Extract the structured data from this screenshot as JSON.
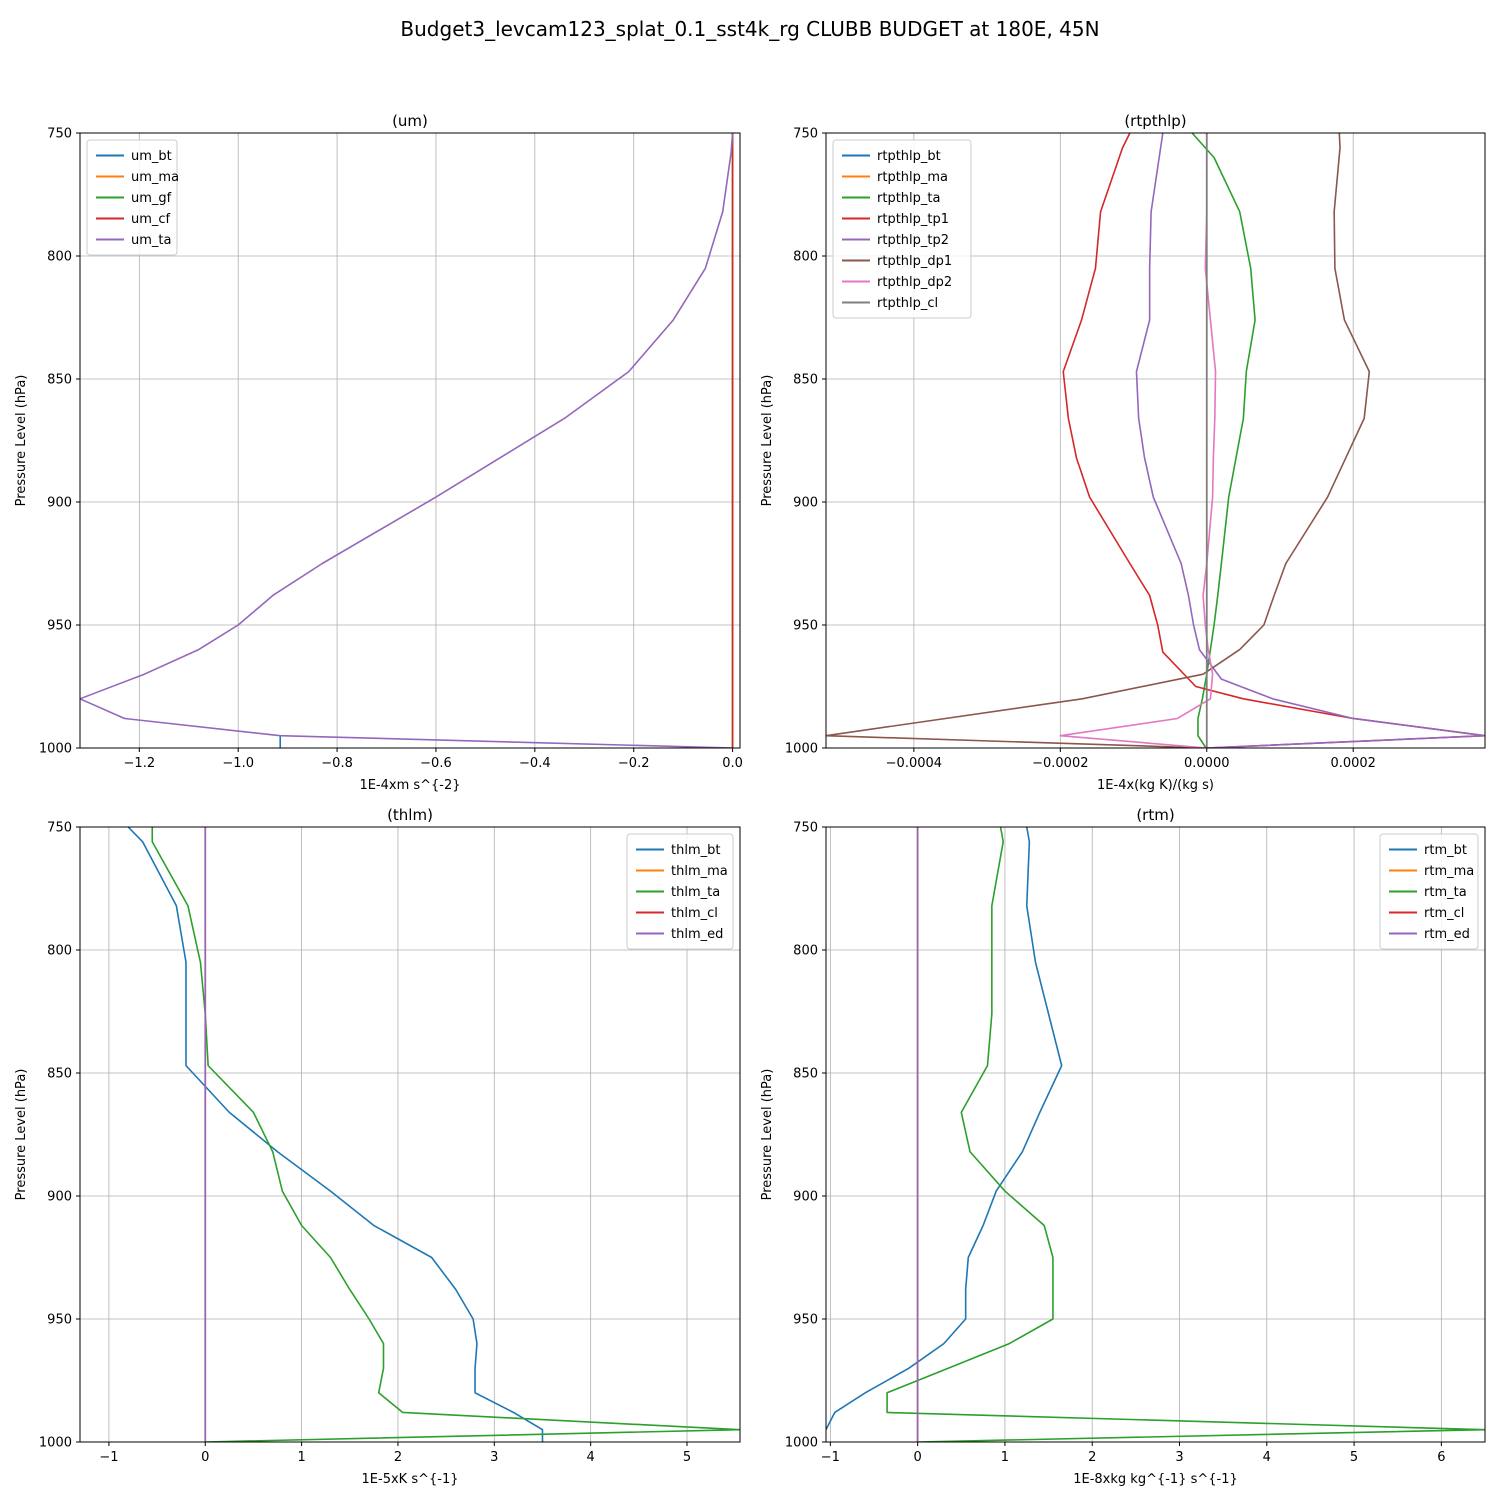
{
  "suptitle": "Budget3_levcam123_splat_0.1_sst4k_rg CLUBB BUDGET at 180E, 45N",
  "colors": [
    "#1f77b4",
    "#ff7f0e",
    "#2ca02c",
    "#d62728",
    "#9467bd",
    "#8c564b",
    "#e377c2",
    "#7f7f7f"
  ],
  "chart_data": [
    {
      "type": "line",
      "title": "(um)",
      "xlabel": "1E-4xm s^{-2}",
      "ylabel": "Pressure Level (hPa)",
      "xlim": [
        -1.32,
        0.015
      ],
      "ylim": [
        1000,
        750
      ],
      "xticks": [
        -1.2,
        -1.0,
        -0.8,
        -0.6,
        -0.4,
        -0.2,
        0.0
      ],
      "xtick_labels": [
        "−1.2",
        "−1.0",
        "−0.8",
        "−0.6",
        "−0.4",
        "−0.2",
        "0.0"
      ],
      "yticks": [
        750,
        800,
        850,
        900,
        950,
        1000
      ],
      "grid": true,
      "legend_loc": "upper-left",
      "series": [
        {
          "name": "um_bt",
          "points": [
            [
              -0.915,
              1000
            ],
            [
              -0.915,
              995
            ]
          ]
        },
        {
          "name": "um_ma",
          "points": [
            [
              0,
              1000
            ],
            [
              0,
              750
            ]
          ]
        },
        {
          "name": "um_gf",
          "points": [
            [
              0,
              1000
            ],
            [
              0,
              750
            ]
          ]
        },
        {
          "name": "um_cf",
          "points": [
            [
              0,
              1000
            ],
            [
              0,
              750
            ]
          ]
        },
        {
          "name": "um_ta",
          "points": [
            [
              0,
              1000
            ],
            [
              -0.915,
              995
            ],
            [
              -1.23,
              988
            ],
            [
              -1.32,
              980
            ],
            [
              -1.19,
              970
            ],
            [
              -1.08,
              960
            ],
            [
              -1.0,
              950
            ],
            [
              -0.93,
              938
            ],
            [
              -0.83,
              925
            ],
            [
              -0.6,
              898
            ],
            [
              -0.47,
              882
            ],
            [
              -0.34,
              866
            ],
            [
              -0.21,
              847
            ],
            [
              -0.12,
              826
            ],
            [
              -0.055,
              805
            ],
            [
              -0.02,
              782
            ],
            [
              -0.003,
              758
            ],
            [
              0,
              750
            ]
          ]
        }
      ]
    },
    {
      "type": "line",
      "title": "(rtpthlp)",
      "xlabel": "1E-4x(kg K)/(kg s)",
      "ylabel": "Pressure Level (hPa)",
      "xlim": [
        -0.00052,
        0.00038
      ],
      "ylim": [
        1000,
        750
      ],
      "xticks": [
        -0.0004,
        -0.0002,
        0.0,
        0.0002
      ],
      "xtick_labels": [
        "−0.0004",
        "−0.0002",
        "0.0000",
        "0.0002"
      ],
      "yticks": [
        750,
        800,
        850,
        900,
        950,
        1000
      ],
      "grid": true,
      "legend_loc": "upper-left",
      "series": [
        {
          "name": "rtpthlp_bt",
          "points": [
            [
              0,
              1000
            ],
            [
              0,
              750
            ]
          ]
        },
        {
          "name": "rtpthlp_ma",
          "points": [
            [
              0,
              1000
            ],
            [
              0,
              750
            ]
          ]
        },
        {
          "name": "rtpthlp_ta",
          "points": [
            [
              -1e-06,
              1000
            ],
            [
              -1.2e-05,
              995
            ],
            [
              -1.2e-05,
              988
            ],
            [
              -6e-06,
              980
            ],
            [
              0.0,
              970
            ],
            [
              5e-06,
              960
            ],
            [
              1e-05,
              950
            ],
            [
              1.5e-05,
              938
            ],
            [
              2e-05,
              925
            ],
            [
              3e-05,
              898
            ],
            [
              4e-05,
              882
            ],
            [
              5e-05,
              866
            ],
            [
              5.4e-05,
              847
            ],
            [
              6.6e-05,
              826
            ],
            [
              6e-05,
              805
            ],
            [
              4.5e-05,
              782
            ],
            [
              1e-05,
              760
            ],
            [
              -2e-05,
              750
            ]
          ]
        },
        {
          "name": "rtpthlp_tp1",
          "points": [
            [
              0,
              1000
            ],
            [
              0.00038,
              995
            ],
            [
              0.0002,
              988
            ],
            [
              5e-05,
              980
            ],
            [
              -1.5e-05,
              975
            ],
            [
              -6e-05,
              961
            ],
            [
              -6.7e-05,
              950
            ],
            [
              -7.8e-05,
              938
            ],
            [
              -0.000105,
              925
            ],
            [
              -0.00016,
              898
            ],
            [
              -0.000178,
              882
            ],
            [
              -0.000189,
              866
            ],
            [
              -0.000196,
              847
            ],
            [
              -0.000171,
              826
            ],
            [
              -0.000152,
              805
            ],
            [
              -0.000145,
              782
            ],
            [
              -0.000115,
              756
            ],
            [
              -0.000105,
              750
            ]
          ]
        },
        {
          "name": "rtpthlp_tp2",
          "points": [
            [
              0,
              1000
            ],
            [
              0.00038,
              995
            ],
            [
              0.0002,
              988
            ],
            [
              9e-05,
              980
            ],
            [
              2e-05,
              972
            ],
            [
              -1e-05,
              960
            ],
            [
              -1.8e-05,
              950
            ],
            [
              -2.5e-05,
              938
            ],
            [
              -3.5e-05,
              925
            ],
            [
              -7.3e-05,
              898
            ],
            [
              -8.5e-05,
              882
            ],
            [
              -9.3e-05,
              866
            ],
            [
              -9.6e-05,
              847
            ],
            [
              -7.8e-05,
              826
            ],
            [
              -7.8e-05,
              805
            ],
            [
              -7.6e-05,
              782
            ],
            [
              -6.3e-05,
              756
            ],
            [
              -6e-05,
              750
            ]
          ]
        },
        {
          "name": "rtpthlp_dp1",
          "points": [
            [
              0,
              1000
            ],
            [
              -0.00052,
              995
            ],
            [
              -0.00017,
              980
            ],
            [
              -5e-06,
              970
            ],
            [
              4.5e-05,
              960
            ],
            [
              7.8e-05,
              950
            ],
            [
              9.2e-05,
              938
            ],
            [
              0.000108,
              925
            ],
            [
              0.000165,
              898
            ],
            [
              0.00019,
              882
            ],
            [
              0.000215,
              866
            ],
            [
              0.000222,
              847
            ],
            [
              0.000188,
              826
            ],
            [
              0.000175,
              805
            ],
            [
              0.000174,
              782
            ],
            [
              0.000182,
              756
            ],
            [
              0.000181,
              750
            ]
          ]
        },
        {
          "name": "rtpthlp_dp2",
          "points": [
            [
              0,
              1000
            ],
            [
              -0.0002,
              995
            ],
            [
              -4e-05,
              988
            ],
            [
              5e-06,
              980
            ],
            [
              8e-06,
              970
            ],
            [
              2e-06,
              960
            ],
            [
              -2e-06,
              950
            ],
            [
              -5e-06,
              938
            ],
            [
              0.0,
              925
            ],
            [
              8e-06,
              898
            ],
            [
              9e-06,
              882
            ],
            [
              1.1e-05,
              866
            ],
            [
              1.2e-05,
              847
            ],
            [
              5e-06,
              826
            ],
            [
              -2e-06,
              805
            ],
            [
              0.0,
              782
            ],
            [
              0.0,
              750
            ]
          ]
        },
        {
          "name": "rtpthlp_cl",
          "points": [
            [
              0,
              1000
            ],
            [
              0,
              750
            ]
          ]
        }
      ]
    },
    {
      "type": "line",
      "title": "(thlm)",
      "xlabel": "1E-5xK s^{-1}",
      "ylabel": "Pressure Level (hPa)",
      "xlim": [
        -1.3,
        5.55
      ],
      "ylim": [
        1000,
        750
      ],
      "xticks": [
        -1,
        0,
        1,
        2,
        3,
        4,
        5
      ],
      "xtick_labels": [
        "−1",
        "0",
        "1",
        "2",
        "3",
        "4",
        "5"
      ],
      "yticks": [
        750,
        800,
        850,
        900,
        950,
        1000
      ],
      "grid": true,
      "legend_loc": "upper-right",
      "series": [
        {
          "name": "thlm_bt",
          "points": [
            [
              3.5,
              1000
            ],
            [
              3.5,
              995
            ],
            [
              3.2,
              988
            ],
            [
              2.8,
              980
            ],
            [
              2.8,
              970
            ],
            [
              2.82,
              960
            ],
            [
              2.78,
              950
            ],
            [
              2.6,
              938
            ],
            [
              2.35,
              925
            ],
            [
              1.75,
              912
            ],
            [
              1.3,
              898
            ],
            [
              0.75,
              882
            ],
            [
              0.25,
              866
            ],
            [
              -0.2,
              847
            ],
            [
              -0.2,
              826
            ],
            [
              -0.2,
              805
            ],
            [
              -0.3,
              782
            ],
            [
              -0.65,
              756
            ],
            [
              -0.8,
              750
            ]
          ]
        },
        {
          "name": "thlm_ma",
          "points": [
            [
              0,
              1000
            ],
            [
              0,
              750
            ]
          ]
        },
        {
          "name": "thlm_ta",
          "points": [
            [
              0,
              1000
            ],
            [
              5.55,
              995
            ],
            [
              2.05,
              988
            ],
            [
              1.8,
              980
            ],
            [
              1.85,
              970
            ],
            [
              1.85,
              960
            ],
            [
              1.7,
              950
            ],
            [
              1.5,
              938
            ],
            [
              1.3,
              925
            ],
            [
              1.0,
              912
            ],
            [
              0.8,
              898
            ],
            [
              0.7,
              882
            ],
            [
              0.5,
              866
            ],
            [
              0.03,
              847
            ],
            [
              0.0,
              826
            ],
            [
              -0.05,
              805
            ],
            [
              -0.18,
              782
            ],
            [
              -0.55,
              756
            ],
            [
              -0.55,
              750
            ]
          ]
        },
        {
          "name": "thlm_cl",
          "points": [
            [
              0,
              1000
            ],
            [
              0,
              750
            ]
          ]
        },
        {
          "name": "thlm_ed",
          "points": [
            [
              0,
              1000
            ],
            [
              0,
              750
            ]
          ]
        }
      ]
    },
    {
      "type": "line",
      "title": "(rtm)",
      "xlabel": "1E-8xkg kg^{-1} s^{-1}",
      "ylabel": "Pressure Level (hPa)",
      "xlim": [
        -1.05,
        6.5
      ],
      "ylim": [
        1000,
        750
      ],
      "xticks": [
        -1,
        0,
        1,
        2,
        3,
        4,
        5,
        6
      ],
      "xtick_labels": [
        "−1",
        "0",
        "1",
        "2",
        "3",
        "4",
        "5",
        "6"
      ],
      "yticks": [
        750,
        800,
        850,
        900,
        950,
        1000
      ],
      "grid": true,
      "legend_loc": "upper-right",
      "series": [
        {
          "name": "rtm_bt",
          "points": [
            [
              -1.05,
              995
            ],
            [
              -0.95,
              988
            ],
            [
              -0.6,
              980
            ],
            [
              -0.1,
              970
            ],
            [
              0.3,
              960
            ],
            [
              0.55,
              950
            ],
            [
              0.55,
              938
            ],
            [
              0.58,
              925
            ],
            [
              0.75,
              912
            ],
            [
              0.9,
              898
            ],
            [
              1.2,
              882
            ],
            [
              1.4,
              866
            ],
            [
              1.65,
              847
            ],
            [
              1.5,
              826
            ],
            [
              1.35,
              805
            ],
            [
              1.25,
              782
            ],
            [
              1.28,
              756
            ],
            [
              1.25,
              750
            ]
          ]
        },
        {
          "name": "rtm_ma",
          "points": [
            [
              0,
              1000
            ],
            [
              0,
              750
            ]
          ]
        },
        {
          "name": "rtm_ta",
          "points": [
            [
              0,
              1000
            ],
            [
              6.5,
              995
            ],
            [
              -0.35,
              988
            ],
            [
              -0.35,
              980
            ],
            [
              0.35,
              970
            ],
            [
              1.05,
              960
            ],
            [
              1.55,
              950
            ],
            [
              1.55,
              938
            ],
            [
              1.55,
              925
            ],
            [
              1.45,
              912
            ],
            [
              1.0,
              898
            ],
            [
              0.6,
              882
            ],
            [
              0.5,
              866
            ],
            [
              0.8,
              847
            ],
            [
              0.85,
              826
            ],
            [
              0.85,
              805
            ],
            [
              0.85,
              782
            ],
            [
              0.98,
              756
            ],
            [
              0.95,
              750
            ]
          ]
        },
        {
          "name": "rtm_cl",
          "points": [
            [
              0,
              1000
            ],
            [
              0,
              750
            ]
          ]
        },
        {
          "name": "rtm_ed",
          "points": [
            [
              0,
              1000
            ],
            [
              0,
              750
            ]
          ]
        }
      ]
    }
  ]
}
